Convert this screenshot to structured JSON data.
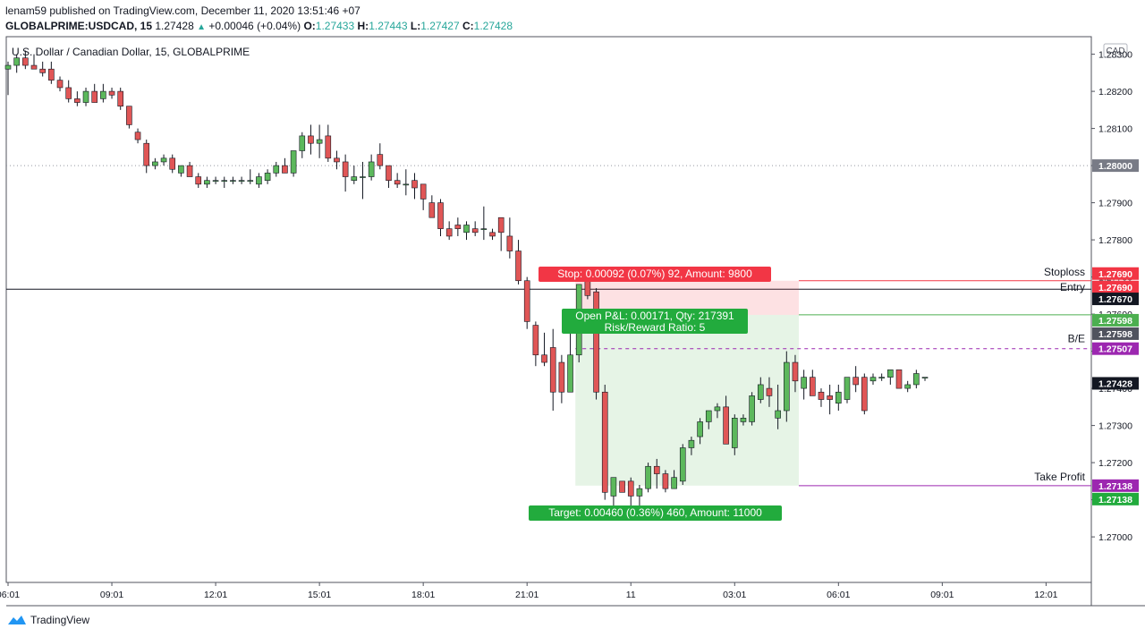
{
  "header": {
    "publisher_line": "lenam59 published on TradingView.com, December 11, 2020 13:51:46 +07",
    "symbol": "GLOBALPRIME:USDCAD, 15",
    "last": "1.27428",
    "change": "+0.00046 (+0.04%)",
    "ohlc": {
      "O": "1.27433",
      "H": "1.27443",
      "L": "1.27427",
      "C": "1.27428"
    }
  },
  "footer": {
    "brand": "TradingView"
  },
  "chart_data": {
    "type": "candlestick",
    "title": "U.S. Dollar / Canadian Dollar, 15, GLOBALPRIME",
    "currency_badge": "CAD",
    "colors": {
      "up": "#5cb85c",
      "down": "#e05656",
      "stop": "#f23645",
      "target": "#22ab3d",
      "be": "#9c27b0",
      "tp": "#9c27b0",
      "entry": "#4caf50"
    },
    "ylim": [
      1.2694,
      1.2834
    ],
    "y_ticks": [
      "1.27000",
      "1.27100",
      "1.27200",
      "1.27300",
      "1.27400",
      "1.27500",
      "1.27600",
      "1.27700",
      "1.27800",
      "1.27900",
      "1.28000",
      "1.28100",
      "1.28200",
      "1.28300"
    ],
    "x_ticks": [
      {
        "i": 0,
        "label": "06:01"
      },
      {
        "i": 12,
        "label": "09:01"
      },
      {
        "i": 24,
        "label": "12:01"
      },
      {
        "i": 36,
        "label": "15:01"
      },
      {
        "i": 48,
        "label": "18:01"
      },
      {
        "i": 60,
        "label": "21:01"
      },
      {
        "i": 72,
        "label": "11"
      },
      {
        "i": 84,
        "label": "03:01"
      },
      {
        "i": 96,
        "label": "06:01"
      },
      {
        "i": 108,
        "label": "09:01"
      },
      {
        "i": 120,
        "label": "12:01"
      }
    ],
    "candles": [
      [
        1.2826,
        1.2828,
        1.2819,
        1.2827
      ],
      [
        1.2827,
        1.283,
        1.2825,
        1.2829
      ],
      [
        1.2829,
        1.2831,
        1.2826,
        1.2827
      ],
      [
        1.2827,
        1.283,
        1.2826,
        1.2826
      ],
      [
        1.2826,
        1.2828,
        1.2824,
        1.2825
      ],
      [
        1.2826,
        1.2828,
        1.2822,
        1.2823
      ],
      [
        1.2823,
        1.2824,
        1.282,
        1.2821
      ],
      [
        1.2821,
        1.2823,
        1.2817,
        1.2818
      ],
      [
        1.2818,
        1.282,
        1.2816,
        1.2817
      ],
      [
        1.2817,
        1.2821,
        1.2816,
        1.282
      ],
      [
        1.282,
        1.2822,
        1.2817,
        1.2817
      ],
      [
        1.2818,
        1.2822,
        1.2817,
        1.282
      ],
      [
        1.282,
        1.2821,
        1.2818,
        1.2819
      ],
      [
        1.282,
        1.2821,
        1.2815,
        1.2816
      ],
      [
        1.2816,
        1.2816,
        1.281,
        1.2811
      ],
      [
        1.2809,
        1.281,
        1.2806,
        1.2807
      ],
      [
        1.2806,
        1.2807,
        1.2798,
        1.28
      ],
      [
        1.28,
        1.2802,
        1.2799,
        1.2801
      ],
      [
        1.2801,
        1.2803,
        1.28,
        1.2802
      ],
      [
        1.2802,
        1.2803,
        1.2798,
        1.2799
      ],
      [
        1.2798,
        1.28,
        1.2797,
        1.28
      ],
      [
        1.28,
        1.2801,
        1.2797,
        1.2797
      ],
      [
        1.2797,
        1.2798,
        1.2794,
        1.2795
      ],
      [
        1.2795,
        1.2797,
        1.2794,
        1.2796
      ],
      [
        1.2796,
        1.2797,
        1.2795,
        1.2796
      ],
      [
        1.2796,
        1.2797,
        1.2794,
        1.2796
      ],
      [
        1.2796,
        1.2797,
        1.2795,
        1.2796
      ],
      [
        1.2796,
        1.2797,
        1.2795,
        1.2796
      ],
      [
        1.2796,
        1.2799,
        1.2795,
        1.2796
      ],
      [
        1.2795,
        1.2798,
        1.2794,
        1.2797
      ],
      [
        1.2796,
        1.2799,
        1.2795,
        1.2798
      ],
      [
        1.2798,
        1.2801,
        1.2797,
        1.28
      ],
      [
        1.28,
        1.2802,
        1.2798,
        1.2798
      ],
      [
        1.2798,
        1.2804,
        1.2797,
        1.2804
      ],
      [
        1.2804,
        1.2809,
        1.2802,
        1.2808
      ],
      [
        1.2808,
        1.2811,
        1.2803,
        1.2806
      ],
      [
        1.2806,
        1.2811,
        1.2802,
        1.2807
      ],
      [
        1.2808,
        1.2811,
        1.2801,
        1.2802
      ],
      [
        1.2802,
        1.2804,
        1.2799,
        1.2801
      ],
      [
        1.2801,
        1.2803,
        1.2793,
        1.2797
      ],
      [
        1.2796,
        1.28,
        1.2795,
        1.2797
      ],
      [
        1.2797,
        1.2801,
        1.2791,
        1.2797
      ],
      [
        1.2797,
        1.2803,
        1.2796,
        1.2801
      ],
      [
        1.2803,
        1.2806,
        1.2799,
        1.28
      ],
      [
        1.28,
        1.28,
        1.2794,
        1.2796
      ],
      [
        1.2796,
        1.2798,
        1.2794,
        1.2795
      ],
      [
        1.2795,
        1.2799,
        1.2792,
        1.2795
      ],
      [
        1.2796,
        1.2798,
        1.2791,
        1.2794
      ],
      [
        1.2795,
        1.2795,
        1.2788,
        1.2791
      ],
      [
        1.279,
        1.2792,
        1.2787,
        1.2786
      ],
      [
        1.279,
        1.2791,
        1.2781,
        1.2783
      ],
      [
        1.2783,
        1.2785,
        1.278,
        1.2781
      ],
      [
        1.2784,
        1.2786,
        1.2781,
        1.2783
      ],
      [
        1.2782,
        1.2785,
        1.278,
        1.2784
      ],
      [
        1.2783,
        1.2785,
        1.2781,
        1.2782
      ],
      [
        1.2783,
        1.2789,
        1.278,
        1.2783
      ],
      [
        1.2782,
        1.2783,
        1.278,
        1.2781
      ],
      [
        1.2786,
        1.2786,
        1.2777,
        1.2782
      ],
      [
        1.2781,
        1.2786,
        1.2775,
        1.2777
      ],
      [
        1.2777,
        1.278,
        1.2768,
        1.2769
      ],
      [
        1.2769,
        1.277,
        1.2756,
        1.2758
      ],
      [
        1.2757,
        1.2758,
        1.2746,
        1.2749
      ],
      [
        1.2749,
        1.2755,
        1.2746,
        1.2747
      ],
      [
        1.2751,
        1.2756,
        1.2734,
        1.2739
      ],
      [
        1.2747,
        1.2749,
        1.2736,
        1.2739
      ],
      [
        1.2739,
        1.2757,
        1.2739,
        1.2749
      ],
      [
        1.2749,
        1.2768,
        1.2747,
        1.2768
      ],
      [
        1.2769,
        1.277,
        1.2764,
        1.2765
      ],
      [
        1.2766,
        1.2767,
        1.2737,
        1.2739
      ],
      [
        1.2739,
        1.2741,
        1.271,
        1.2712
      ],
      [
        1.2711,
        1.2716,
        1.2707,
        1.2716
      ],
      [
        1.2715,
        1.2715,
        1.2712,
        1.2712
      ],
      [
        1.2715,
        1.2716,
        1.2708,
        1.2711
      ],
      [
        1.2711,
        1.2714,
        1.2708,
        1.2713
      ],
      [
        1.2713,
        1.272,
        1.2712,
        1.2719
      ],
      [
        1.2719,
        1.2721,
        1.2713,
        1.2717
      ],
      [
        1.2717,
        1.2718,
        1.2712,
        1.2713
      ],
      [
        1.2713,
        1.2718,
        1.2713,
        1.2716
      ],
      [
        1.2715,
        1.2725,
        1.2714,
        1.2724
      ],
      [
        1.2724,
        1.2727,
        1.2722,
        1.2726
      ],
      [
        1.2727,
        1.2732,
        1.2725,
        1.2731
      ],
      [
        1.2731,
        1.2734,
        1.2729,
        1.2734
      ],
      [
        1.2734,
        1.2736,
        1.2732,
        1.2735
      ],
      [
        1.2735,
        1.2738,
        1.2725,
        1.2725
      ],
      [
        1.2724,
        1.2733,
        1.2722,
        1.2732
      ],
      [
        1.2731,
        1.2733,
        1.273,
        1.2732
      ],
      [
        1.2731,
        1.2739,
        1.273,
        1.2738
      ],
      [
        1.2737,
        1.2743,
        1.2736,
        1.2741
      ],
      [
        1.274,
        1.2743,
        1.2735,
        1.2738
      ],
      [
        1.2732,
        1.2741,
        1.2729,
        1.2734
      ],
      [
        1.2734,
        1.275,
        1.2731,
        1.2747
      ],
      [
        1.2747,
        1.2749,
        1.2739,
        1.2742
      ],
      [
        1.274,
        1.2745,
        1.2737,
        1.2743
      ],
      [
        1.2743,
        1.2745,
        1.2739,
        1.2738
      ],
      [
        1.2739,
        1.274,
        1.2735,
        1.2737
      ],
      [
        1.2738,
        1.2741,
        1.2733,
        1.2737
      ],
      [
        1.2736,
        1.2741,
        1.2734,
        1.2739
      ],
      [
        1.2737,
        1.2743,
        1.2736,
        1.2743
      ],
      [
        1.2743,
        1.2746,
        1.2739,
        1.2741
      ],
      [
        1.2743,
        1.2744,
        1.2733,
        1.2734
      ],
      [
        1.2742,
        1.2744,
        1.2741,
        1.2743
      ],
      [
        1.2743,
        1.2744,
        1.2742,
        1.2743
      ],
      [
        1.2743,
        1.2745,
        1.2741,
        1.2745
      ],
      [
        1.2745,
        1.2745,
        1.274,
        1.274
      ],
      [
        1.274,
        1.2742,
        1.2739,
        1.2741
      ],
      [
        1.2741,
        1.2745,
        1.274,
        1.2744
      ],
      [
        1.2743,
        1.2743,
        1.2742,
        1.2743
      ]
    ],
    "levels": {
      "stoploss": {
        "price": 1.2769,
        "label": "Stoploss",
        "badge": "1.27690"
      },
      "current": {
        "price": 1.2767,
        "label": "Entry",
        "badge": "1.27670"
      },
      "entry": {
        "price": 1.27598,
        "badge": "1.27598"
      },
      "be": {
        "price": 1.27507,
        "label": "B/E",
        "badge": "1.27507"
      },
      "last": {
        "price": 1.27428,
        "badge": "1.27428"
      },
      "take_profit": {
        "price": 1.27138,
        "label": "Take Profit",
        "badge": "1.27138"
      },
      "dotted": {
        "price": 1.28,
        "badge": "1.28000"
      },
      "black_line": {
        "price": 1.27667
      }
    },
    "position": {
      "start_i": 66,
      "end_i": 91,
      "entry": 1.27598,
      "stop": 1.2769,
      "target": 1.27138,
      "stop_label": "Stop: 0.00092 (0.07%) 92, Amount: 9800",
      "pnl_label": "Open P&L: 0.00171, Qty: 217391",
      "rr_label": "Risk/Reward Ratio: 5",
      "target_label": "Target: 0.00460 (0.36%) 460, Amount: 11000"
    }
  }
}
